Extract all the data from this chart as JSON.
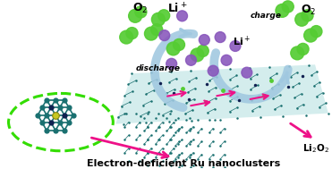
{
  "bg_color": "#ffffff",
  "label_o2_left": "O$_2$",
  "label_li_left": "Li$^+$",
  "label_discharge": "discharge",
  "label_charge": "charge",
  "label_o2_right": "O$_2$",
  "label_li_right": "Li$^+$",
  "label_li2o2": "Li$_2$O$_2$",
  "label_bottom": "Electron-deficient Ru nanoclusters",
  "green_color": "#55cc33",
  "purple_color": "#8855bb",
  "arrow_color": "#a0c8e0",
  "pink_color": "#ee1188",
  "dashed_color": "#33dd00",
  "teal_color": "#1a7070",
  "dark_blue": "#102050",
  "sheet_face": "#d0ecec",
  "fold_face": "#b0d8d8"
}
